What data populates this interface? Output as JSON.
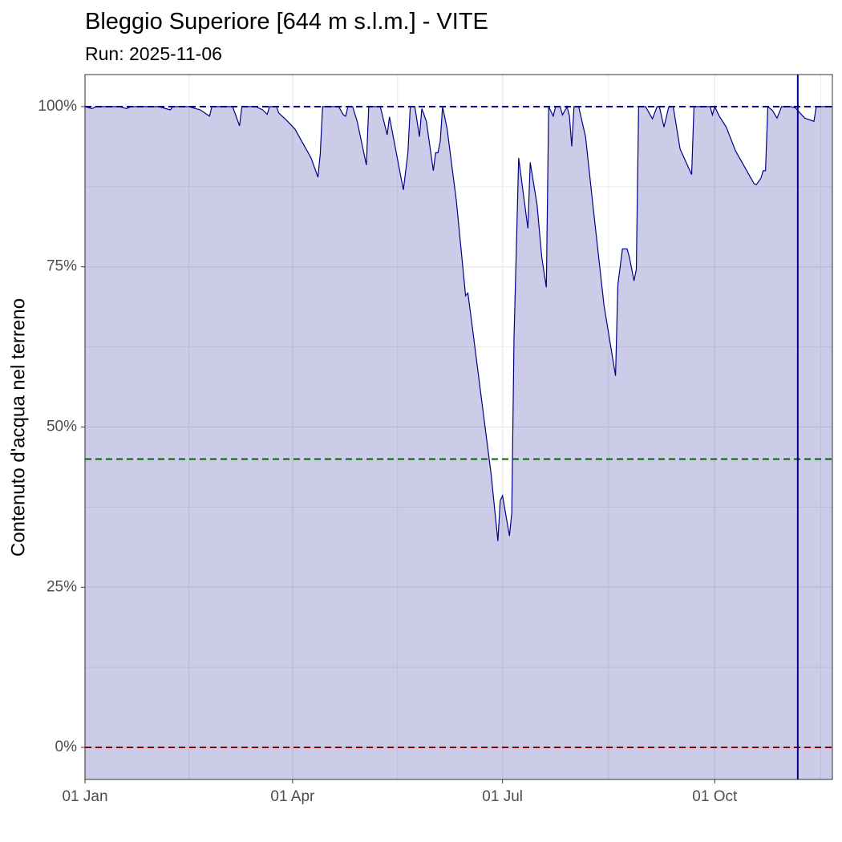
{
  "chart_data": {
    "type": "area",
    "title": "Bleggio Superiore [644 m s.l.m.] - VITE",
    "subtitle": "Run: 2025-11-06",
    "ylabel": "Contenuto d'acqua nel terreno",
    "xlim": [
      "2025-01-01",
      "2025-11-21"
    ],
    "xticks": [
      {
        "value": "2025-01-01",
        "label": "01 Jan"
      },
      {
        "value": "2025-04-01",
        "label": "01 Apr"
      },
      {
        "value": "2025-07-01",
        "label": "01 Jul"
      },
      {
        "value": "2025-10-01",
        "label": "01 Oct"
      }
    ],
    "ylim": [
      -5,
      105
    ],
    "yticks": [
      {
        "value": 0,
        "label": "0%"
      },
      {
        "value": 25,
        "label": "25%"
      },
      {
        "value": 50,
        "label": "50%"
      },
      {
        "value": 75,
        "label": "75%"
      },
      {
        "value": 100,
        "label": "100%"
      }
    ],
    "grid": true,
    "vline": {
      "x": "2025-11-06",
      "color": "#00008b"
    },
    "hlines": [
      {
        "value": 100,
        "color": "#00008b"
      },
      {
        "value": 45,
        "color": "#006400"
      },
      {
        "value": 0,
        "color": "#8b0000"
      }
    ],
    "series": [
      {
        "color": "#00008b",
        "x": [
          "2025-01-01",
          "2025-01-04",
          "2025-01-06",
          "2025-01-16",
          "2025-01-19",
          "2025-01-21",
          "2025-02-02",
          "2025-02-07",
          "2025-02-08",
          "2025-02-15",
          "2025-02-20",
          "2025-02-24",
          "2025-02-25",
          "2025-03-06",
          "2025-03-09",
          "2025-03-10",
          "2025-03-16",
          "2025-03-19",
          "2025-03-21",
          "2025-03-22",
          "2025-03-25",
          "2025-03-26",
          "2025-03-29",
          "2025-04-02",
          "2025-04-09",
          "2025-04-12",
          "2025-04-13",
          "2025-04-14",
          "2025-04-21",
          "2025-04-23",
          "2025-04-24",
          "2025-04-25",
          "2025-04-27",
          "2025-04-29",
          "2025-05-03",
          "2025-05-04",
          "2025-05-09",
          "2025-05-12",
          "2025-05-13",
          "2025-05-19",
          "2025-05-21",
          "2025-05-22",
          "2025-05-24",
          "2025-05-26",
          "2025-05-27",
          "2025-05-29",
          "2025-06-01",
          "2025-06-02",
          "2025-06-03",
          "2025-06-04",
          "2025-06-05",
          "2025-06-07",
          "2025-06-11",
          "2025-06-15",
          "2025-06-16",
          "2025-06-18",
          "2025-06-22",
          "2025-06-26",
          "2025-06-29",
          "2025-06-30",
          "2025-07-01",
          "2025-07-04",
          "2025-07-05",
          "2025-07-06",
          "2025-07-07",
          "2025-07-08",
          "2025-07-10",
          "2025-07-12",
          "2025-07-13",
          "2025-07-16",
          "2025-07-18",
          "2025-07-20",
          "2025-07-21",
          "2025-07-23",
          "2025-07-24",
          "2025-07-26",
          "2025-07-27",
          "2025-07-29",
          "2025-07-30",
          "2025-07-31",
          "2025-08-01",
          "2025-08-03",
          "2025-08-06",
          "2025-08-09",
          "2025-08-14",
          "2025-08-19",
          "2025-08-20",
          "2025-08-22",
          "2025-08-24",
          "2025-08-25",
          "2025-08-27",
          "2025-08-28",
          "2025-08-29",
          "2025-09-01",
          "2025-09-04",
          "2025-09-06",
          "2025-09-07",
          "2025-09-09",
          "2025-09-11",
          "2025-09-13",
          "2025-09-16",
          "2025-09-21",
          "2025-09-22",
          "2025-09-29",
          "2025-09-30",
          "2025-10-01",
          "2025-10-03",
          "2025-10-06",
          "2025-10-10",
          "2025-10-18",
          "2025-10-19",
          "2025-10-21",
          "2025-10-22",
          "2025-10-23",
          "2025-10-24",
          "2025-10-26",
          "2025-10-28",
          "2025-10-30",
          "2025-11-03",
          "2025-11-05",
          "2025-11-07",
          "2025-11-09",
          "2025-11-13",
          "2025-11-14",
          "2025-11-21"
        ],
        "values": [
          100,
          99.7,
          100,
          100,
          99.7,
          100,
          100,
          99.5,
          100,
          100,
          99.5,
          98.5,
          100,
          100,
          97,
          100,
          100,
          99.5,
          98.8,
          100,
          100,
          99,
          98,
          96.5,
          92,
          89,
          92.7,
          100,
          100,
          98.7,
          98.5,
          100,
          100,
          97.7,
          90.9,
          100,
          100,
          95.6,
          98.4,
          87,
          92.8,
          100,
          100,
          95.3,
          99.7,
          97.7,
          90,
          92.8,
          92.8,
          94.6,
          100,
          96.5,
          85.3,
          70.5,
          70.9,
          65.3,
          54,
          42.8,
          32.2,
          38.5,
          39.3,
          33,
          36.6,
          64,
          77.8,
          92,
          86.5,
          81,
          91.3,
          84.6,
          76.5,
          71.8,
          100,
          98.5,
          100,
          100,
          98.7,
          100,
          98.5,
          93.8,
          100,
          100,
          95.3,
          85.3,
          69,
          58,
          72.2,
          77.8,
          77.8,
          76.5,
          72.8,
          74.6,
          100,
          100,
          98.1,
          100,
          100,
          96.8,
          99.9,
          100,
          93.4,
          89.4,
          100,
          100,
          98.7,
          100,
          98.5,
          96.8,
          93.1,
          88,
          87.8,
          88.8,
          90,
          90,
          100,
          99.4,
          98.2,
          100,
          100,
          99.8,
          99,
          98.2,
          97.7,
          100,
          100
        ]
      }
    ]
  }
}
